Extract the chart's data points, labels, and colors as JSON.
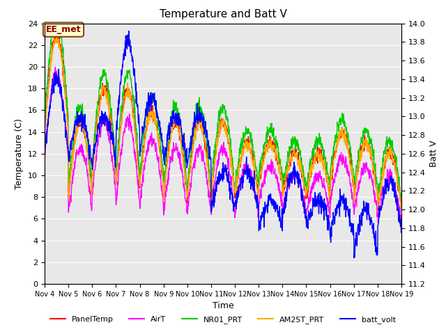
{
  "title": "Temperature and Batt V",
  "xlabel": "Time",
  "ylabel_left": "Temperature (C)",
  "ylabel_right": "Batt V",
  "ylim_left": [
    0,
    24
  ],
  "ylim_right": [
    11.2,
    14.0
  ],
  "annotation": "EE_met",
  "background_color": "#ffffff",
  "plot_bg_color": "#e8e8e8",
  "x_start": 4,
  "x_end": 19,
  "x_ticks": [
    4,
    5,
    6,
    7,
    8,
    9,
    10,
    11,
    12,
    13,
    14,
    15,
    16,
    17,
    18,
    19
  ],
  "x_tick_labels": [
    "Nov 4",
    "Nov 5",
    "Nov 6",
    "Nov 7",
    "Nov 8",
    "Nov 9",
    "Nov 10",
    "Nov 11",
    "Nov 12",
    "Nov 13",
    "Nov 14",
    "Nov 15",
    "Nov 16",
    "Nov 17",
    "Nov 18",
    "Nov 19"
  ],
  "legend": [
    {
      "label": "PanelTemp",
      "color": "#ff0000"
    },
    {
      "label": "AirT",
      "color": "#ff00ff"
    },
    {
      "label": "NR01_PRT",
      "color": "#00cc00"
    },
    {
      "label": "AM25T_PRT",
      "color": "#ffaa00"
    },
    {
      "label": "batt_volt",
      "color": "#0000ff"
    }
  ],
  "line_width": 1.0
}
